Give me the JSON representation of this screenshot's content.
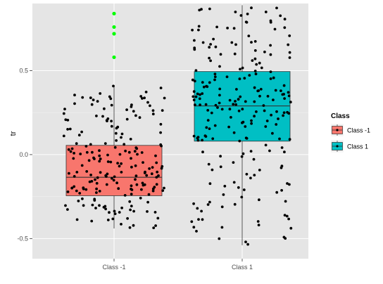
{
  "chart_data": {
    "type": "boxplot",
    "title": "",
    "xlabel": "",
    "ylabel": "tr",
    "ylim": [
      -0.62,
      0.9
    ],
    "yticks": [
      -0.5,
      0.0,
      0.5
    ],
    "ytick_labels": [
      "-0.5",
      "0.0",
      "0.5"
    ],
    "categories": [
      "Class -1",
      "Class 1"
    ],
    "grid": true,
    "legend": {
      "title": "Class",
      "placement": "right",
      "entries": [
        "Class -1",
        "Class 1"
      ]
    },
    "colors": {
      "Class -1": "#f8766d",
      "Class 1": "#00bfc4",
      "outlier": "#00ff00",
      "panel": "#e5e5e5",
      "grid": "#ffffff",
      "point": "#000000"
    },
    "boxes": [
      {
        "name": "Class -1",
        "q1": -0.245,
        "median": -0.135,
        "q3": 0.055,
        "whisker_low": -0.44,
        "whisker_high": 0.41,
        "outliers": [
          0.58,
          0.72,
          0.76,
          0.84
        ]
      },
      {
        "name": "Class 1",
        "q1": 0.08,
        "median": 0.29,
        "q3": 0.495,
        "whisker_low": -0.54,
        "whisker_high": 0.89,
        "outliers": []
      }
    ]
  }
}
